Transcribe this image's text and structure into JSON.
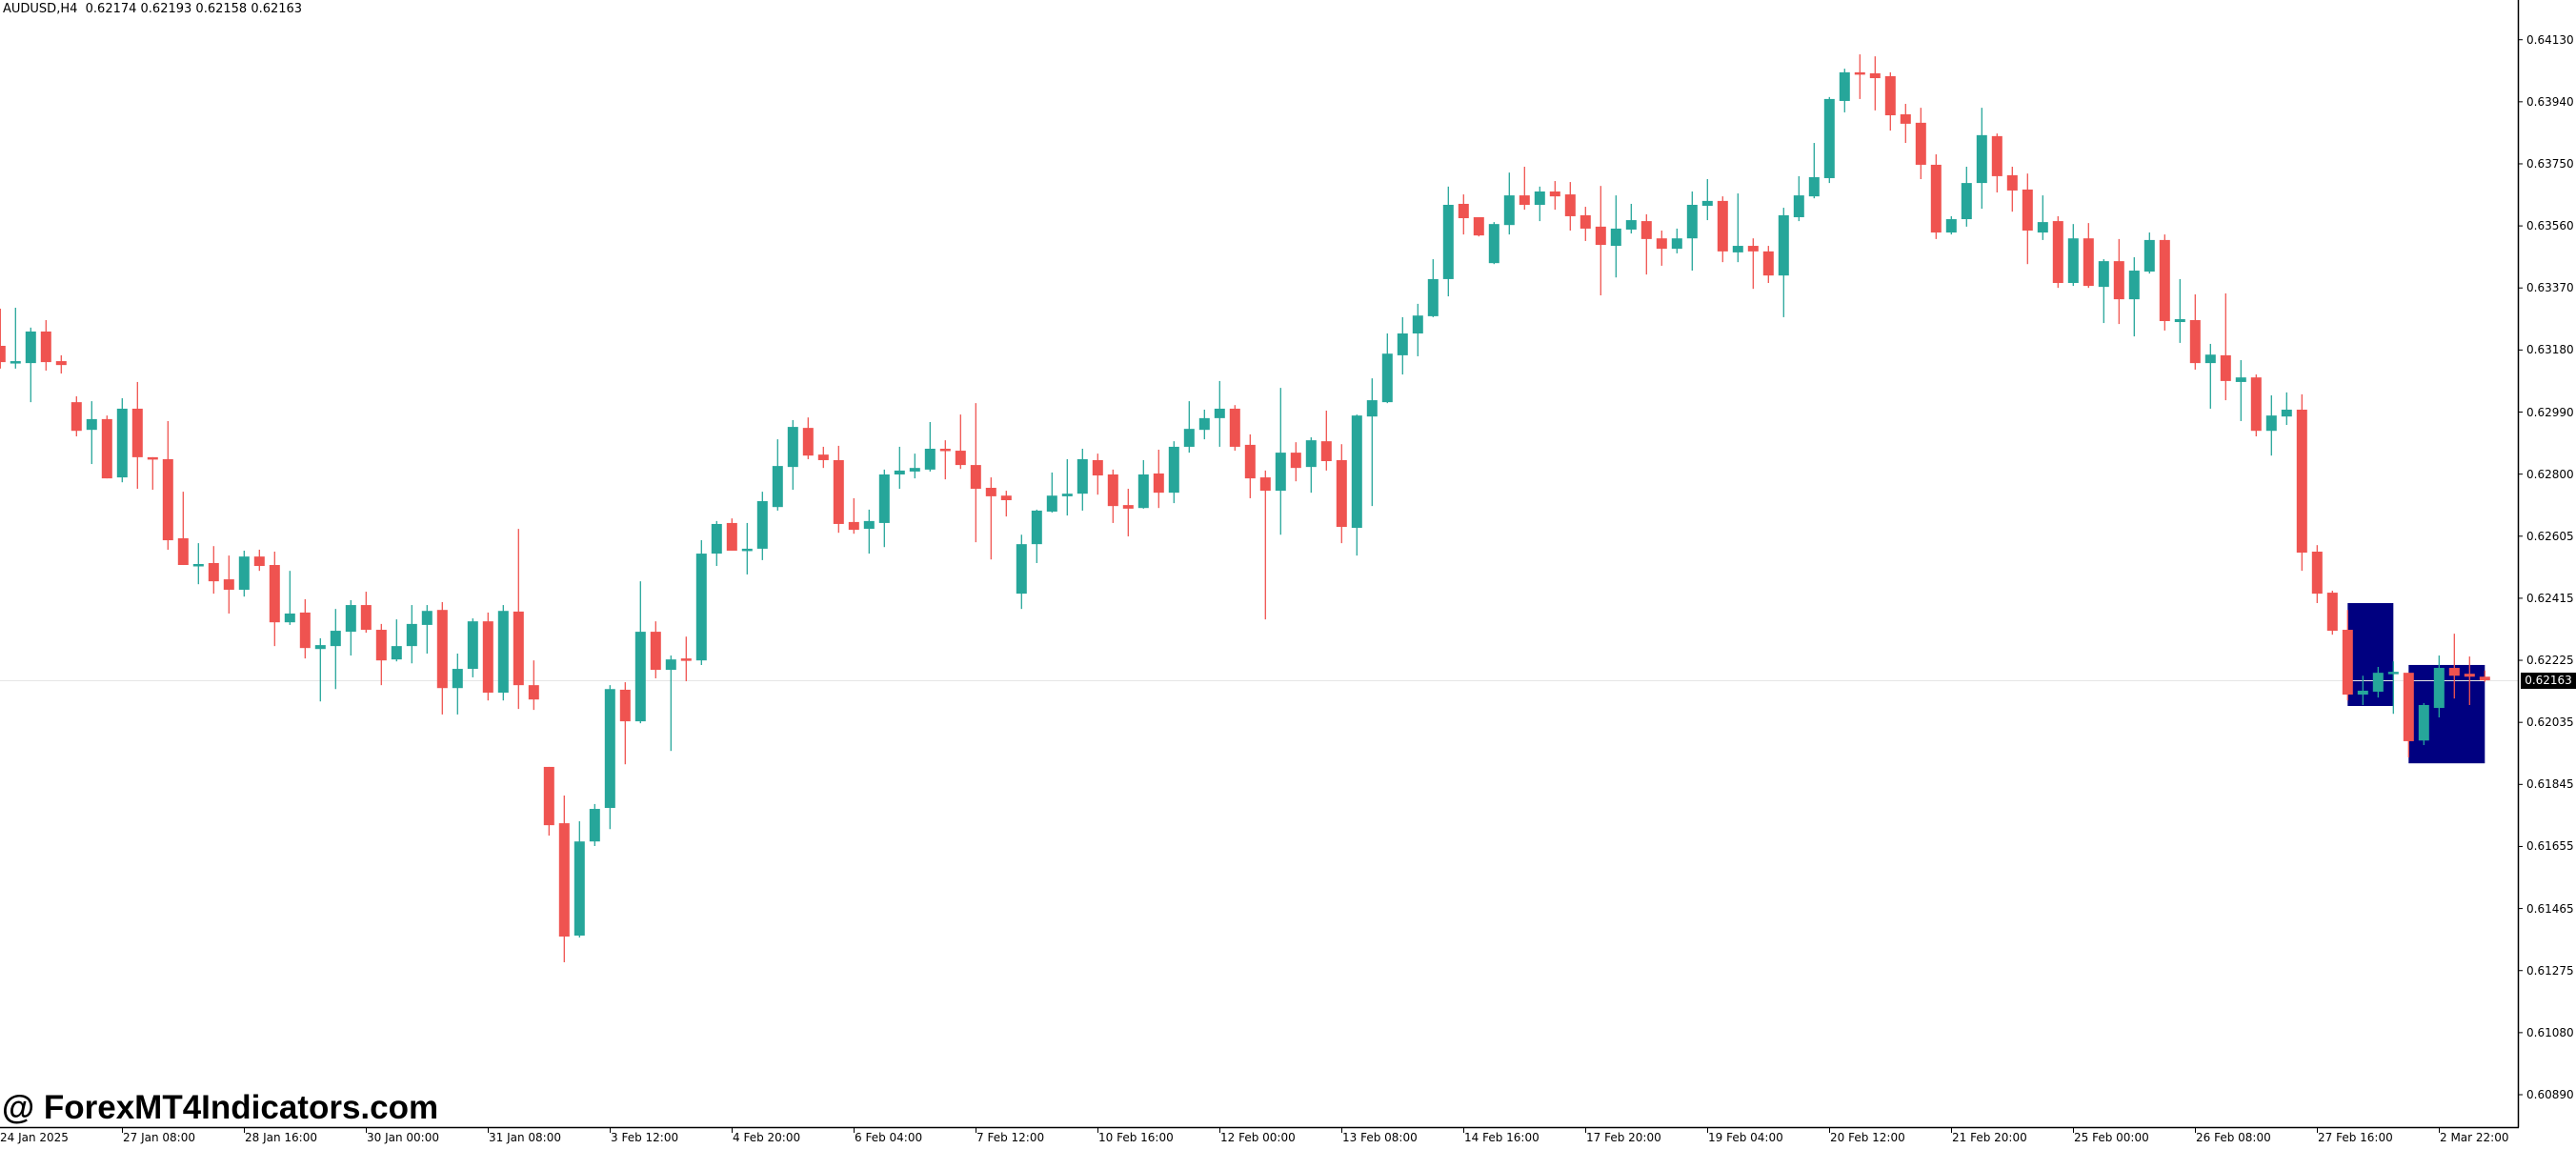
{
  "header": {
    "symbol_timeframe": "AUDUSD,H4",
    "ohlc_text": "0.62174 0.62193 0.62158 0.62163"
  },
  "watermark": "@ ForexMT4Indicators.com",
  "current_price": {
    "label": "0.62163",
    "value": 0.62163
  },
  "colors": {
    "bull": "#26a69a",
    "bear": "#ef5350",
    "rectangle": "#000080",
    "price_line": "#e6e6e6",
    "axis": "#000000",
    "background": "#ffffff"
  },
  "price_axis": {
    "labels": [
      "0.64130",
      "0.63940",
      "0.63750",
      "0.63560",
      "0.63370",
      "0.63180",
      "0.62990",
      "0.62800",
      "0.62605",
      "0.62415",
      "0.62225",
      "0.62035",
      "0.61845",
      "0.61655",
      "0.61465",
      "0.61275",
      "0.61080",
      "0.60890"
    ]
  },
  "time_axis": {
    "labels": [
      "24 Jan 2025",
      "27 Jan 08:00",
      "28 Jan 16:00",
      "30 Jan 00:00",
      "31 Jan 08:00",
      "3 Feb 12:00",
      "4 Feb 20:00",
      "6 Feb 04:00",
      "7 Feb 12:00",
      "10 Feb 16:00",
      "12 Feb 00:00",
      "13 Feb 08:00",
      "14 Feb 16:00",
      "17 Feb 20:00",
      "19 Feb 04:00",
      "20 Feb 12:00",
      "21 Feb 20:00",
      "25 Feb 00:00",
      "26 Feb 08:00",
      "27 Feb 16:00",
      "2 Mar 22:00"
    ]
  },
  "chart_data": {
    "type": "candlestick",
    "title": "AUDUSD,H4",
    "symbol": "AUDUSD",
    "timeframe": "H4",
    "xlabel": "",
    "ylabel": "",
    "ylim": [
      0.6084,
      0.6425
    ],
    "grid": false,
    "legend": "none",
    "x_tick_labels": [
      "24 Jan 2025",
      "27 Jan 08:00",
      "28 Jan 16:00",
      "30 Jan 00:00",
      "31 Jan 08:00",
      "3 Feb 12:00",
      "4 Feb 20:00",
      "6 Feb 04:00",
      "7 Feb 12:00",
      "10 Feb 16:00",
      "12 Feb 00:00",
      "13 Feb 08:00",
      "14 Feb 16:00",
      "17 Feb 20:00",
      "19 Feb 04:00",
      "20 Feb 12:00",
      "21 Feb 20:00",
      "25 Feb 00:00",
      "26 Feb 08:00",
      "27 Feb 16:00",
      "2 Mar 22:00"
    ],
    "x_tick_every_n_bars": 8,
    "y_tick_labels": [
      "0.64130",
      "0.63940",
      "0.63750",
      "0.63560",
      "0.63370",
      "0.63180",
      "0.62990",
      "0.62800",
      "0.62605",
      "0.62415",
      "0.62225",
      "0.62035",
      "0.61845",
      "0.61655",
      "0.61465",
      "0.61275",
      "0.61080",
      "0.60890"
    ],
    "last_bar": {
      "open": 0.62174,
      "high": 0.62193,
      "low": 0.62158,
      "close": 0.62163
    },
    "current_price": 0.62163,
    "columns": [
      "open",
      "high",
      "low",
      "close"
    ],
    "ohlc": [
      [
        0.6319,
        0.63304,
        0.6312,
        0.6314
      ],
      [
        0.6314,
        0.63307,
        0.6312,
        0.63143
      ],
      [
        0.63137,
        0.63246,
        0.63017,
        0.63234
      ],
      [
        0.63234,
        0.63269,
        0.63114,
        0.6314
      ],
      [
        0.63143,
        0.63161,
        0.63105,
        0.63131
      ],
      [
        0.63017,
        0.63035,
        0.62912,
        0.62929
      ],
      [
        0.62932,
        0.6302,
        0.62827,
        0.62965
      ],
      [
        0.62965,
        0.62976,
        0.62783,
        0.62783
      ],
      [
        0.62786,
        0.63029,
        0.62771,
        0.62997
      ],
      [
        0.62997,
        0.63079,
        0.62751,
        0.62848
      ],
      [
        0.62848,
        0.62848,
        0.62748,
        0.62842
      ],
      [
        0.62842,
        0.62959,
        0.62564,
        0.62593
      ],
      [
        0.62599,
        0.62742,
        0.62517,
        0.62517
      ],
      [
        0.62514,
        0.62584,
        0.62458,
        0.6252
      ],
      [
        0.62523,
        0.62575,
        0.62429,
        0.62467
      ],
      [
        0.62473,
        0.62546,
        0.62368,
        0.62441
      ],
      [
        0.62441,
        0.62561,
        0.6242,
        0.62543
      ],
      [
        0.62543,
        0.62564,
        0.62499,
        0.62514
      ],
      [
        0.62517,
        0.62558,
        0.62268,
        0.62341
      ],
      [
        0.62341,
        0.62499,
        0.62333,
        0.62368
      ],
      [
        0.62371,
        0.62412,
        0.6223,
        0.62262
      ],
      [
        0.62259,
        0.62292,
        0.62098,
        0.62271
      ],
      [
        0.62268,
        0.62382,
        0.62136,
        0.62315
      ],
      [
        0.62312,
        0.62409,
        0.62239,
        0.62394
      ],
      [
        0.62394,
        0.62435,
        0.62309,
        0.62318
      ],
      [
        0.62318,
        0.62336,
        0.62148,
        0.62224
      ],
      [
        0.62227,
        0.6235,
        0.62221,
        0.62268
      ],
      [
        0.62268,
        0.62394,
        0.62215,
        0.62336
      ],
      [
        0.62333,
        0.62394,
        0.62245,
        0.62376
      ],
      [
        0.62379,
        0.62403,
        0.62058,
        0.62139
      ],
      [
        0.62139,
        0.62245,
        0.62058,
        0.62198
      ],
      [
        0.62198,
        0.62353,
        0.62172,
        0.62344
      ],
      [
        0.62344,
        0.62371,
        0.62101,
        0.62125
      ],
      [
        0.62125,
        0.62394,
        0.62101,
        0.62376
      ],
      [
        0.62374,
        0.62628,
        0.62075,
        0.62148
      ],
      [
        0.62148,
        0.62224,
        0.62072,
        0.62104
      ],
      [
        0.61897,
        0.61897,
        0.61686,
        0.61718
      ],
      [
        0.61724,
        0.61809,
        0.61297,
        0.61376
      ],
      [
        0.61379,
        0.6173,
        0.61373,
        0.61668
      ],
      [
        0.61668,
        0.61783,
        0.61654,
        0.61768
      ],
      [
        0.61771,
        0.62148,
        0.61706,
        0.62136
      ],
      [
        0.62134,
        0.62157,
        0.61905,
        0.62037
      ],
      [
        0.62037,
        0.62467,
        0.62031,
        0.62312
      ],
      [
        0.62312,
        0.62344,
        0.62169,
        0.62195
      ],
      [
        0.62195,
        0.62239,
        0.61946,
        0.62227
      ],
      [
        0.6223,
        0.62297,
        0.6216,
        0.62224
      ],
      [
        0.62224,
        0.62593,
        0.6221,
        0.62552
      ],
      [
        0.62552,
        0.62652,
        0.62514,
        0.62643
      ],
      [
        0.62646,
        0.6266,
        0.62561,
        0.62561
      ],
      [
        0.62561,
        0.62646,
        0.62488,
        0.62567
      ],
      [
        0.62567,
        0.62742,
        0.62532,
        0.62713
      ],
      [
        0.62695,
        0.62903,
        0.62684,
        0.62821
      ],
      [
        0.62818,
        0.62962,
        0.62748,
        0.62941
      ],
      [
        0.62938,
        0.6297,
        0.62842,
        0.62853
      ],
      [
        0.62856,
        0.6288,
        0.62815,
        0.62839
      ],
      [
        0.62839,
        0.62883,
        0.62616,
        0.62643
      ],
      [
        0.62649,
        0.62722,
        0.62613,
        0.62625
      ],
      [
        0.62628,
        0.62687,
        0.62552,
        0.62652
      ],
      [
        0.62646,
        0.6281,
        0.62572,
        0.62795
      ],
      [
        0.62795,
        0.6288,
        0.62751,
        0.62807
      ],
      [
        0.62804,
        0.62859,
        0.62783,
        0.62815
      ],
      [
        0.6281,
        0.62956,
        0.62804,
        0.62874
      ],
      [
        0.62874,
        0.629,
        0.6278,
        0.62868
      ],
      [
        0.62868,
        0.62979,
        0.62812,
        0.62824
      ],
      [
        0.62824,
        0.63014,
        0.62587,
        0.62751
      ],
      [
        0.62754,
        0.62786,
        0.62534,
        0.62728
      ],
      [
        0.6273,
        0.62745,
        0.62666,
        0.62716
      ],
      [
        0.62429,
        0.6261,
        0.62382,
        0.62581
      ],
      [
        0.62581,
        0.62687,
        0.62523,
        0.62684
      ],
      [
        0.62681,
        0.62801,
        0.62678,
        0.6273
      ],
      [
        0.62728,
        0.62842,
        0.62669,
        0.62736
      ],
      [
        0.62736,
        0.62874,
        0.62684,
        0.62842
      ],
      [
        0.62839,
        0.62859,
        0.62733,
        0.62792
      ],
      [
        0.62795,
        0.6281,
        0.62646,
        0.62698
      ],
      [
        0.62701,
        0.62751,
        0.62605,
        0.6269
      ],
      [
        0.62692,
        0.62839,
        0.6269,
        0.62795
      ],
      [
        0.62798,
        0.62871,
        0.62692,
        0.62739
      ],
      [
        0.62739,
        0.62897,
        0.62707,
        0.6288
      ],
      [
        0.6288,
        0.6302,
        0.62862,
        0.62935
      ],
      [
        0.62932,
        0.62994,
        0.62903,
        0.62968
      ],
      [
        0.62968,
        0.63082,
        0.6288,
        0.62997
      ],
      [
        0.62997,
        0.63008,
        0.62868,
        0.6288
      ],
      [
        0.62886,
        0.62918,
        0.62722,
        0.62783
      ],
      [
        0.62786,
        0.62807,
        0.6235,
        0.62745
      ],
      [
        0.62745,
        0.63061,
        0.6261,
        0.62862
      ],
      [
        0.62862,
        0.62894,
        0.62774,
        0.62815
      ],
      [
        0.62818,
        0.62909,
        0.62739,
        0.629
      ],
      [
        0.62897,
        0.62991,
        0.62807,
        0.62836
      ],
      [
        0.62839,
        0.62888,
        0.62584,
        0.62634
      ],
      [
        0.62631,
        0.62979,
        0.62546,
        0.62976
      ],
      [
        0.62973,
        0.6309,
        0.62698,
        0.63023
      ],
      [
        0.63017,
        0.63228,
        0.63014,
        0.63166
      ],
      [
        0.63161,
        0.63278,
        0.63102,
        0.63228
      ],
      [
        0.63228,
        0.63319,
        0.63158,
        0.63283
      ],
      [
        0.63281,
        0.63456,
        0.63278,
        0.63395
      ],
      [
        0.63395,
        0.63679,
        0.63342,
        0.63623
      ],
      [
        0.63626,
        0.63655,
        0.63532,
        0.63582
      ],
      [
        0.63585,
        0.63585,
        0.63526,
        0.63529
      ],
      [
        0.63444,
        0.6357,
        0.63441,
        0.63564
      ],
      [
        0.63561,
        0.63722,
        0.63532,
        0.63652
      ],
      [
        0.63652,
        0.6374,
        0.63608,
        0.63623
      ],
      [
        0.63623,
        0.63679,
        0.63573,
        0.63664
      ],
      [
        0.63664,
        0.63696,
        0.63608,
        0.63649
      ],
      [
        0.63655,
        0.63693,
        0.63544,
        0.63588
      ],
      [
        0.63591,
        0.63617,
        0.63512,
        0.6355
      ],
      [
        0.63556,
        0.63681,
        0.63345,
        0.635
      ],
      [
        0.63497,
        0.63652,
        0.634,
        0.6355
      ],
      [
        0.63547,
        0.63626,
        0.63535,
        0.63576
      ],
      [
        0.63573,
        0.63594,
        0.63409,
        0.63518
      ],
      [
        0.6352,
        0.63544,
        0.63436,
        0.63488
      ],
      [
        0.63488,
        0.6355,
        0.63474,
        0.6352
      ],
      [
        0.6352,
        0.63664,
        0.63421,
        0.63623
      ],
      [
        0.6362,
        0.63702,
        0.63576,
        0.63635
      ],
      [
        0.63635,
        0.63649,
        0.63447,
        0.6348
      ],
      [
        0.63477,
        0.63658,
        0.63447,
        0.63497
      ],
      [
        0.63497,
        0.6352,
        0.63365,
        0.6348
      ],
      [
        0.6348,
        0.63497,
        0.63383,
        0.63406
      ],
      [
        0.63406,
        0.63614,
        0.63278,
        0.63591
      ],
      [
        0.63585,
        0.63711,
        0.63573,
        0.63652
      ],
      [
        0.63649,
        0.63813,
        0.63643,
        0.63708
      ],
      [
        0.63705,
        0.63954,
        0.6369,
        0.63948
      ],
      [
        0.63942,
        0.64041,
        0.63907,
        0.6403
      ],
      [
        0.6403,
        0.64085,
        0.63948,
        0.64024
      ],
      [
        0.64027,
        0.64079,
        0.63913,
        0.64012
      ],
      [
        0.64018,
        0.6403,
        0.63851,
        0.63898
      ],
      [
        0.63901,
        0.63933,
        0.63813,
        0.63872
      ],
      [
        0.63875,
        0.63921,
        0.63702,
        0.63746
      ],
      [
        0.63746,
        0.63778,
        0.63518,
        0.63538
      ],
      [
        0.63538,
        0.63588,
        0.63532,
        0.63579
      ],
      [
        0.63579,
        0.6374,
        0.63556,
        0.6369
      ],
      [
        0.6369,
        0.63921,
        0.63611,
        0.63837
      ],
      [
        0.63834,
        0.63842,
        0.63661,
        0.63711
      ],
      [
        0.63714,
        0.6374,
        0.63602,
        0.63667
      ],
      [
        0.6367,
        0.63719,
        0.63441,
        0.63544
      ],
      [
        0.63538,
        0.63652,
        0.63515,
        0.6357
      ],
      [
        0.63573,
        0.63588,
        0.63368,
        0.63383
      ],
      [
        0.63383,
        0.63564,
        0.63374,
        0.6352
      ],
      [
        0.6352,
        0.63567,
        0.63368,
        0.63374
      ],
      [
        0.63371,
        0.63456,
        0.6326,
        0.6345
      ],
      [
        0.6345,
        0.63518,
        0.63257,
        0.63333
      ],
      [
        0.63333,
        0.63462,
        0.63219,
        0.63421
      ],
      [
        0.63418,
        0.63538,
        0.63412,
        0.63515
      ],
      [
        0.63515,
        0.63532,
        0.63237,
        0.63266
      ],
      [
        0.63263,
        0.63395,
        0.63199,
        0.63272
      ],
      [
        0.63269,
        0.63348,
        0.63117,
        0.63137
      ],
      [
        0.63137,
        0.63196,
        0.62997,
        0.63163
      ],
      [
        0.63161,
        0.63351,
        0.63023,
        0.63082
      ],
      [
        0.63079,
        0.63146,
        0.62959,
        0.63093
      ],
      [
        0.63093,
        0.63102,
        0.62912,
        0.62929
      ],
      [
        0.62929,
        0.63038,
        0.62853,
        0.62976
      ],
      [
        0.62973,
        0.63047,
        0.62947,
        0.62994
      ],
      [
        0.62994,
        0.63041,
        0.62499,
        0.62555
      ],
      [
        0.62558,
        0.62578,
        0.624,
        0.62429
      ],
      [
        0.62432,
        0.62438,
        0.62303,
        0.62315
      ],
      [
        0.62318,
        0.62379,
        0.62101,
        0.62119
      ],
      [
        0.62119,
        0.62177,
        0.62087,
        0.62131
      ],
      [
        0.62128,
        0.62204,
        0.6211,
        0.62186
      ],
      [
        0.62183,
        0.62221,
        0.6206,
        0.62189
      ],
      [
        0.62186,
        0.62186,
        0.61926,
        0.61976
      ],
      [
        0.61978,
        0.62093,
        0.61964,
        0.62087
      ],
      [
        0.62078,
        0.62239,
        0.62049,
        0.62201
      ],
      [
        0.62201,
        0.62306,
        0.62107,
        0.62177
      ],
      [
        0.62183,
        0.62236,
        0.62087,
        0.62174
      ],
      [
        0.62174,
        0.62193,
        0.62158,
        0.62163
      ]
    ],
    "rectangles": [
      {
        "name": "zone-1",
        "from_bar": 154,
        "to_bar": 157,
        "top": 0.624,
        "bottom": 0.62084,
        "color": "#000080"
      },
      {
        "name": "zone-2",
        "from_bar": 158,
        "to_bar": 163,
        "top": 0.6221,
        "bottom": 0.61908,
        "color": "#000080"
      }
    ]
  }
}
